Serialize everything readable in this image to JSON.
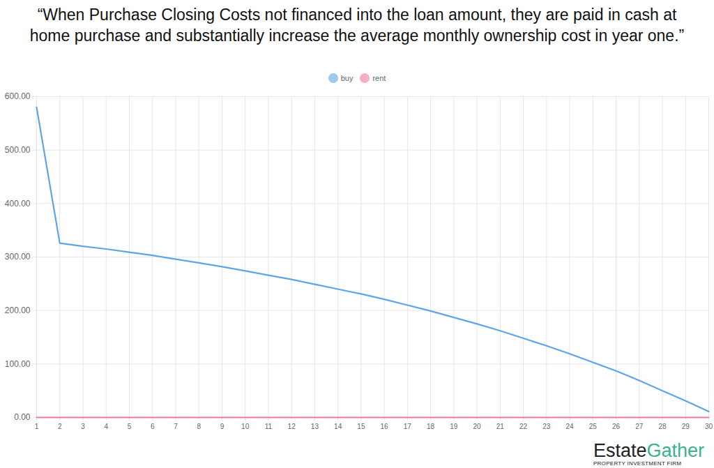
{
  "chart_data": {
    "type": "line",
    "title": "“When Purchase Closing Costs not financed into the loan amount, they are paid in cash at home purchase and substantially increase the average monthly ownership cost in year one.”",
    "x": [
      1,
      2,
      3,
      4,
      5,
      6,
      7,
      8,
      9,
      10,
      11,
      12,
      13,
      14,
      15,
      16,
      17,
      18,
      19,
      20,
      21,
      22,
      23,
      24,
      25,
      26,
      27,
      28,
      29,
      30
    ],
    "series": [
      {
        "name": "buy",
        "color": "#5da5e8",
        "values": [
          580,
          326,
          320,
          315,
          309,
          303,
          296,
          289,
          282,
          274,
          266,
          258,
          249,
          240,
          231,
          221,
          210,
          199,
          187,
          175,
          162,
          148,
          134,
          119,
          103,
          87,
          69,
          50,
          31,
          11
        ]
      },
      {
        "name": "rent",
        "color": "#ec7a98",
        "values": [
          0,
          0,
          0,
          0,
          0,
          0,
          0,
          0,
          0,
          0,
          0,
          0,
          0,
          0,
          0,
          0,
          0,
          0,
          0,
          0,
          0,
          0,
          0,
          0,
          0,
          0,
          0,
          0,
          0,
          0
        ]
      }
    ],
    "xlim": [
      1,
      30
    ],
    "xticks": [
      1,
      2,
      3,
      4,
      5,
      6,
      7,
      8,
      9,
      10,
      11,
      12,
      13,
      14,
      15,
      16,
      17,
      18,
      19,
      20,
      21,
      22,
      23,
      24,
      25,
      26,
      27,
      28,
      29,
      30
    ],
    "ylim": [
      0,
      600
    ],
    "yticks": [
      {
        "value": 0,
        "label": "0.00"
      },
      {
        "value": 100,
        "label": "100.00"
      },
      {
        "value": 200,
        "label": "200.00"
      },
      {
        "value": 300,
        "label": "300.00"
      },
      {
        "value": 400,
        "label": "400.00"
      },
      {
        "value": 500,
        "label": "500.00"
      },
      {
        "value": 600,
        "label": "600.00"
      }
    ],
    "grid": true,
    "legend": "top",
    "logo": {
      "parts": [
        "Estate",
        "Gather"
      ],
      "tagline": "PROPERTY INVESTMENT FIRM"
    }
  }
}
